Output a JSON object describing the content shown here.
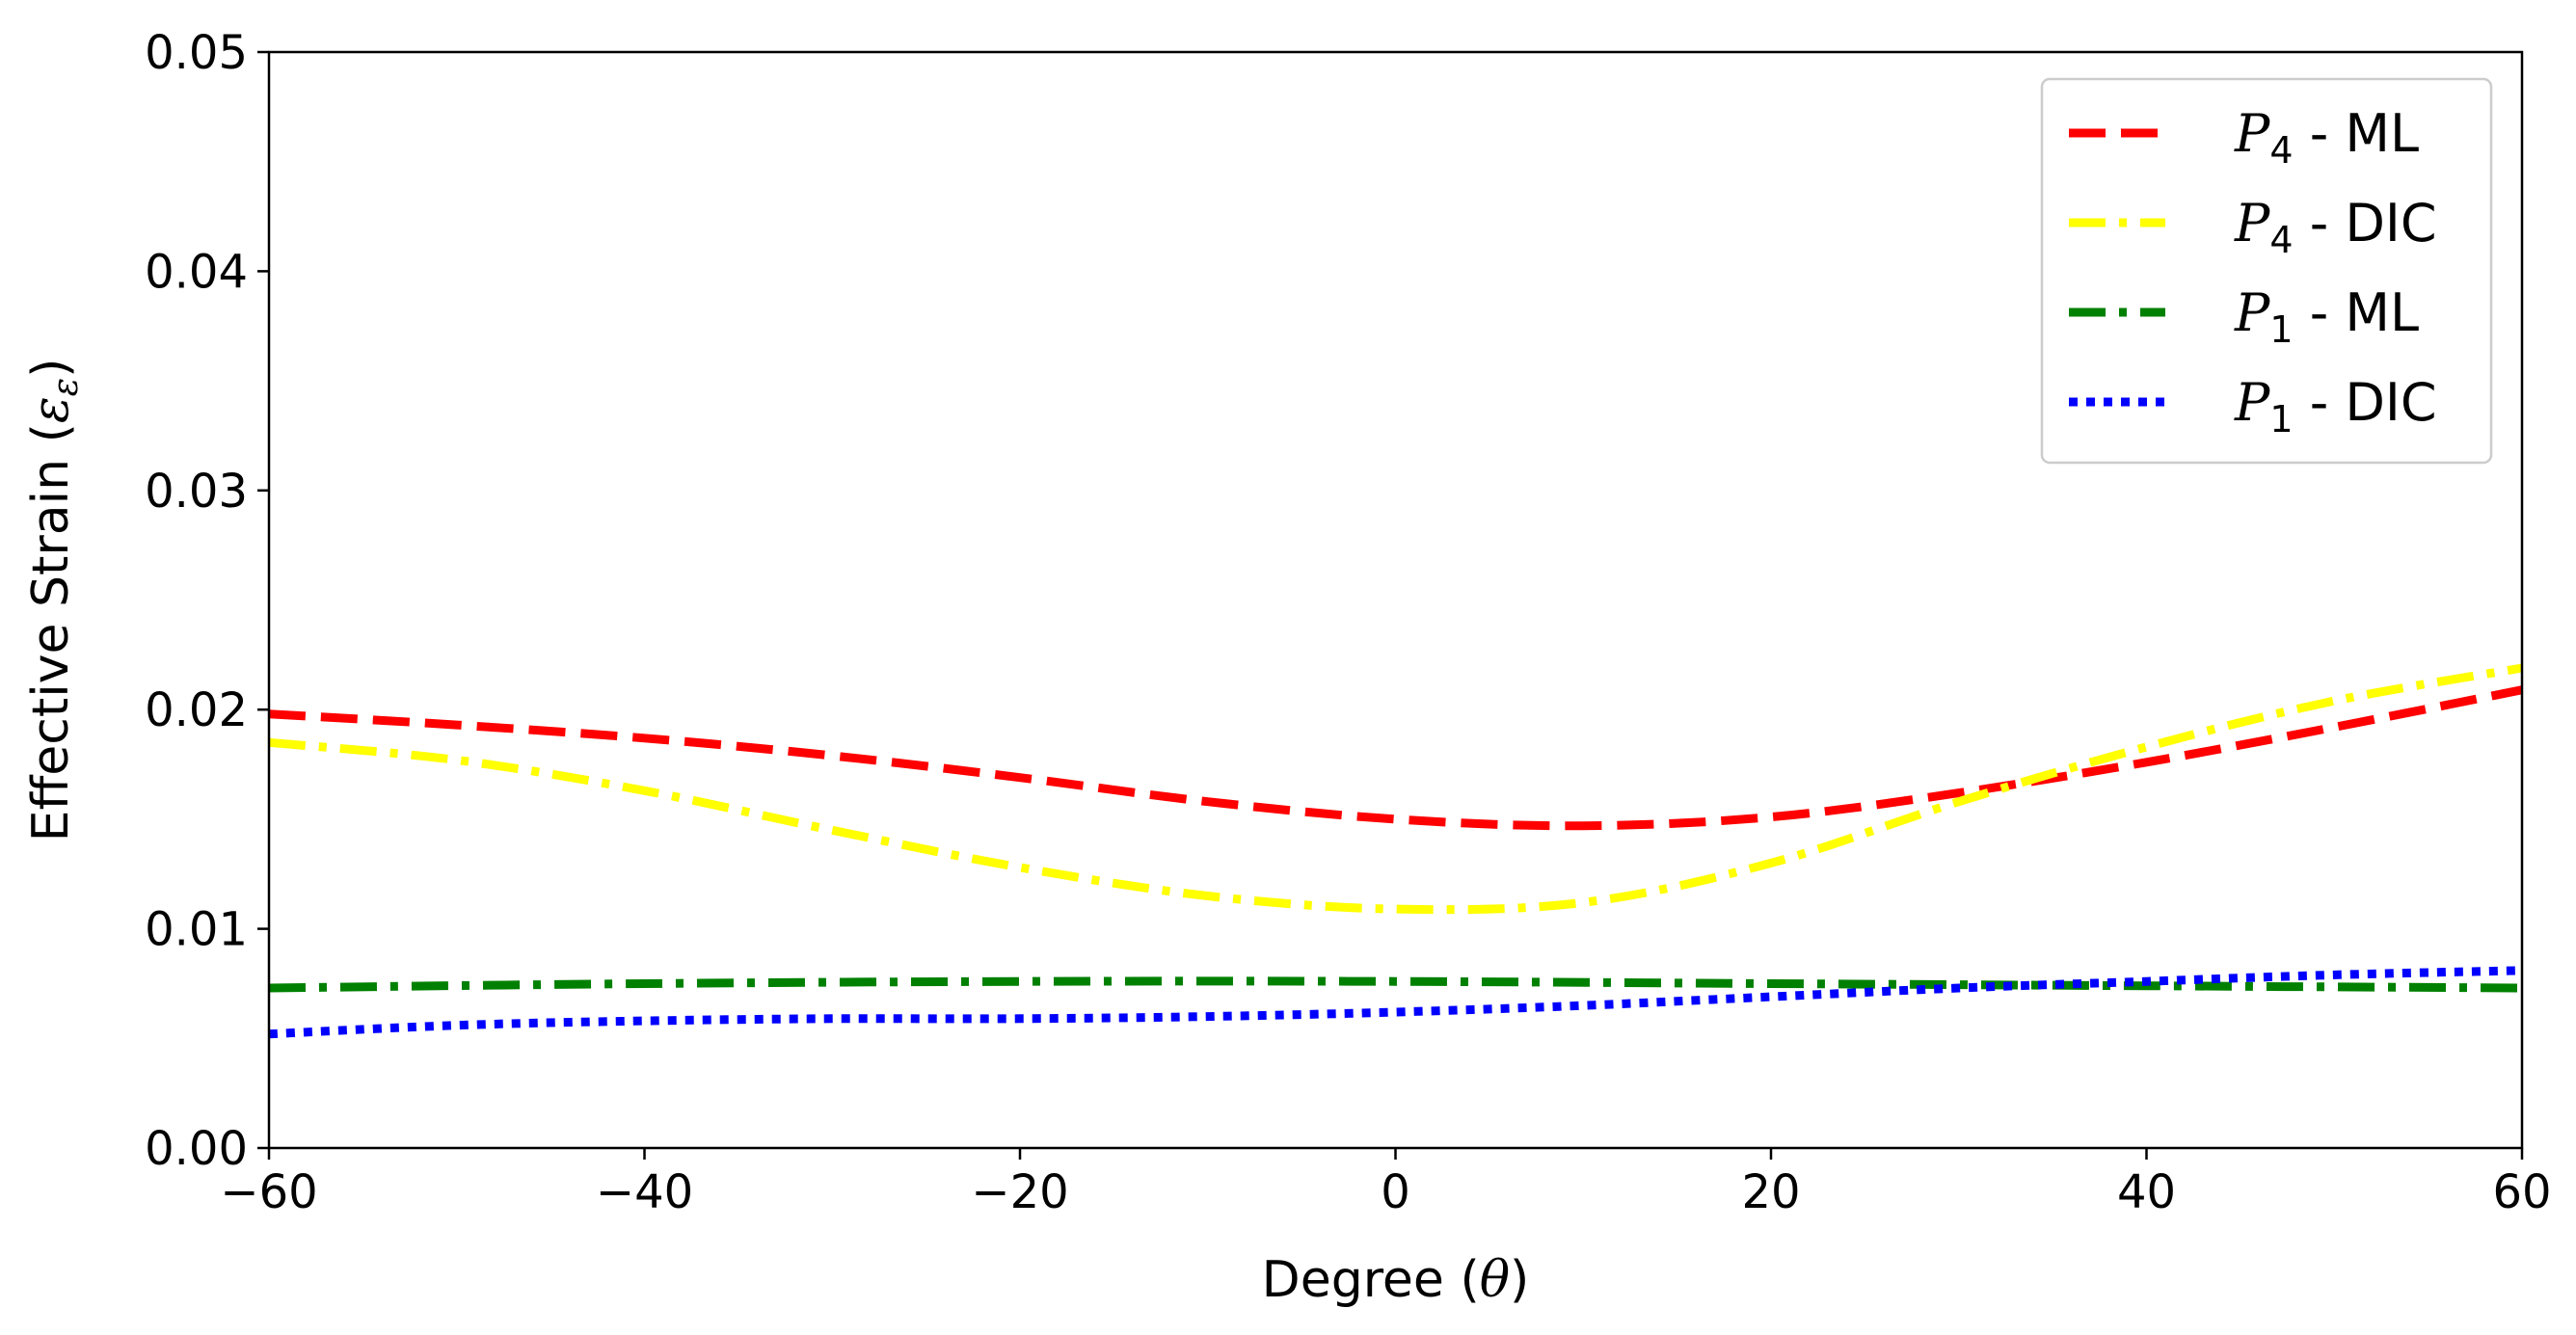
{
  "chart_data": {
    "type": "line",
    "xlabel_text": "Degree (",
    "xlabel_symbol": "θ",
    "xlabel_close": ")",
    "ylabel_text": "Effective Strain (",
    "ylabel_symbol": "ε",
    "ylabel_subscript": "ε",
    "ylabel_close": ")",
    "xlim": [
      -60,
      60
    ],
    "ylim": [
      0.0,
      0.05
    ],
    "xticks": [
      -60,
      -40,
      -20,
      0,
      20,
      40,
      60
    ],
    "xtick_labels": [
      "−60",
      "−40",
      "−20",
      "0",
      "20",
      "40",
      "60"
    ],
    "yticks": [
      0.0,
      0.01,
      0.02,
      0.03,
      0.04,
      0.05
    ],
    "ytick_labels": [
      "0.00",
      "0.01",
      "0.02",
      "0.03",
      "0.04",
      "0.05"
    ],
    "grid": false,
    "legend_position": "top-right",
    "series": [
      {
        "name_symbol": "P",
        "name_subscript": "4",
        "name_suffix": " - ML",
        "color": "#ff0000",
        "dash": "dashed",
        "x": [
          -60,
          -50,
          -40,
          -30,
          -20,
          -10,
          0,
          10,
          20,
          30,
          40,
          50,
          60
        ],
        "y": [
          0.0198,
          0.0193,
          0.0187,
          0.0179,
          0.0169,
          0.0158,
          0.015,
          0.0147,
          0.0151,
          0.0162,
          0.0176,
          0.0192,
          0.0209
        ]
      },
      {
        "name_symbol": "P",
        "name_subscript": "4",
        "name_suffix": " - DIC",
        "color": "#ffff00",
        "dash": "dashdot",
        "x": [
          -60,
          -50,
          -40,
          -30,
          -20,
          -10,
          0,
          10,
          20,
          30,
          40,
          50,
          60
        ],
        "y": [
          0.0185,
          0.0177,
          0.0163,
          0.0145,
          0.0128,
          0.0115,
          0.0109,
          0.0112,
          0.013,
          0.0158,
          0.0183,
          0.0204,
          0.0219
        ]
      },
      {
        "name_symbol": "P",
        "name_subscript": "1",
        "name_suffix": " - ML",
        "color": "#008000",
        "dash": "dashdot",
        "x": [
          -60,
          -40,
          -20,
          0,
          20,
          40,
          60
        ],
        "y": [
          0.0073,
          0.0075,
          0.0076,
          0.0076,
          0.0075,
          0.0074,
          0.0073
        ]
      },
      {
        "name_symbol": "P",
        "name_subscript": "1",
        "name_suffix": " - DIC",
        "color": "#0000ff",
        "dash": "dotted",
        "x": [
          -60,
          -50,
          -40,
          -30,
          -20,
          -10,
          0,
          10,
          20,
          30,
          40,
          50,
          60
        ],
        "y": [
          0.0052,
          0.0056,
          0.0058,
          0.0059,
          0.0059,
          0.006,
          0.0062,
          0.0065,
          0.0069,
          0.0073,
          0.0076,
          0.0079,
          0.0081
        ]
      }
    ]
  }
}
